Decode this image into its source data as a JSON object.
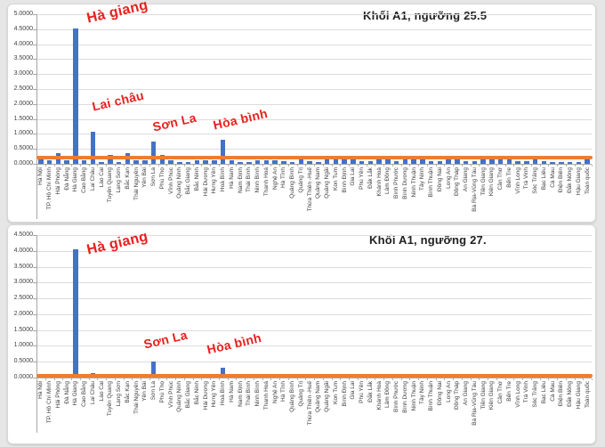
{
  "colors": {
    "bar": "#4472C4",
    "threshold_line": "#ED7D31",
    "annotation": "#E8201D",
    "grid": "#DCDCDC",
    "axis": "#A6A6A6",
    "panel_background": "#FFFFFF",
    "page_background": "#E6E6E6",
    "title_text": "#1F1F1F",
    "tick_text": "#404040"
  },
  "chart_data": {
    "type": "bar",
    "grid": true,
    "legend": "none",
    "categories": [
      "Hà Nội",
      "TP. Hồ Chí Minh",
      "Hải Phòng",
      "Đà Nẵng",
      "Hà Giang",
      "Cao Bằng",
      "Lai Châu",
      "Lào Cai",
      "Tuyên Quang",
      "Lạng Sơn",
      "Bắc Kạn",
      "Thái Nguyên",
      "Yên Bái",
      "Sơn La",
      "Phú Thọ",
      "Vĩnh Phúc",
      "Quảng Ninh",
      "Bắc Giang",
      "Bắc Ninh",
      "Hải Dương",
      "Hưng Yên",
      "Hoà Bình",
      "Hà Nam",
      "Nam Định",
      "Thái Bình",
      "Ninh Bình",
      "Thanh Hoá",
      "Nghệ An",
      "Hà Tĩnh",
      "Quảng Bình",
      "Quảng Trị",
      "Thừa Thiên -Huế",
      "Quảng Nam",
      "Quảng Ngãi",
      "Kon Tum",
      "Bình Định",
      "Gia Lai",
      "Phú Yên",
      "Đắk Lắk",
      "Khánh Hoà",
      "Lâm Đồng",
      "Bình Phước",
      "Bình Dương",
      "Ninh Thuận",
      "Tây Ninh",
      "Bình Thuận",
      "Đồng Nai",
      "Long An",
      "Đồng Tháp",
      "An Giang",
      "Bà Rịa-Vũng Tàu",
      "Tiền Giang",
      "Kiên Giang",
      "Cần Thơ",
      "Bến Tre",
      "Vĩnh Long",
      "Trà Vinh",
      "Sóc Trăng",
      "Bạc Liêu",
      "Cà Mau",
      "Điện Biên",
      "Đắk Nông",
      "Hậu Giang",
      "Toàn quốc"
    ],
    "charts": [
      {
        "title": "Khối A1, ngưỡng 25.5",
        "ylim": [
          0,
          5.0
        ],
        "ystep": 0.5,
        "tick_decimals": 4,
        "threshold_line": 0.2,
        "values": [
          0.27,
          0.12,
          0.37,
          0.13,
          4.52,
          0.13,
          1.08,
          0.07,
          0.3,
          0.07,
          0.35,
          0.13,
          0.13,
          0.76,
          0.3,
          0.12,
          0.07,
          0.07,
          0.13,
          0.12,
          0.13,
          0.8,
          0.12,
          0.07,
          0.07,
          0.13,
          0.12,
          0.12,
          0.09,
          0.05,
          0.22,
          0.1,
          0.06,
          0.22,
          0.2,
          0.24,
          0.24,
          0.1,
          0.1,
          0.14,
          0.22,
          0.1,
          0.24,
          0.24,
          0.14,
          0.1,
          0.1,
          0.22,
          0.22,
          0.1,
          0.1,
          0.22,
          0.22,
          0.24,
          0.24,
          0.1,
          0.1,
          0.24,
          0.1,
          0.06,
          0.06,
          0.06,
          0.06,
          0.26
        ],
        "annotations": [
          {
            "text": "Hà giang",
            "target": "Hà Giang",
            "x": 87,
            "y": 8,
            "rot": -13,
            "size": 16
          },
          {
            "text": "Lai châu",
            "target": "Lai Châu",
            "x": 93,
            "y": 107,
            "rot": -13,
            "size": 14
          },
          {
            "text": "Sơn La",
            "target": "Sơn La",
            "x": 161,
            "y": 130,
            "rot": -13,
            "size": 14
          },
          {
            "text": "Hòa bình",
            "target": "Hoà Bình",
            "x": 229,
            "y": 128,
            "rot": -13,
            "size": 14
          }
        ]
      },
      {
        "title": "Khối A1, ngưỡng 27.",
        "ylim": [
          0,
          4.5
        ],
        "ystep": 0.5,
        "tick_decimals": 4,
        "threshold_line": 0.045,
        "values": [
          0.06,
          0.02,
          0.06,
          0.02,
          4.05,
          0.05,
          0.15,
          0.02,
          0.05,
          0.02,
          0.05,
          0.03,
          0.05,
          0.5,
          0.06,
          0.03,
          0.02,
          0.03,
          0.05,
          0.03,
          0.05,
          0.32,
          0.03,
          0.02,
          0.02,
          0.03,
          0.03,
          0.03,
          0.02,
          0.02,
          0.05,
          0.03,
          0.02,
          0.05,
          0.05,
          0.05,
          0.05,
          0.02,
          0.03,
          0.03,
          0.05,
          0.02,
          0.05,
          0.05,
          0.03,
          0.02,
          0.02,
          0.05,
          0.05,
          0.02,
          0.03,
          0.05,
          0.05,
          0.05,
          0.05,
          0.02,
          0.02,
          0.05,
          0.03,
          0.02,
          0.02,
          0.02,
          0.02,
          0.06
        ],
        "annotations": [
          {
            "text": "Hà giang",
            "target": "Hà Giang",
            "x": 87,
            "y": 20,
            "rot": -13,
            "size": 16
          },
          {
            "text": "Sơn La",
            "target": "Sơn La",
            "x": 151,
            "y": 126,
            "rot": -13,
            "size": 14
          },
          {
            "text": "Hòa bình",
            "target": "Hoà Bình",
            "x": 222,
            "y": 132,
            "rot": -13,
            "size": 14
          }
        ]
      }
    ]
  }
}
